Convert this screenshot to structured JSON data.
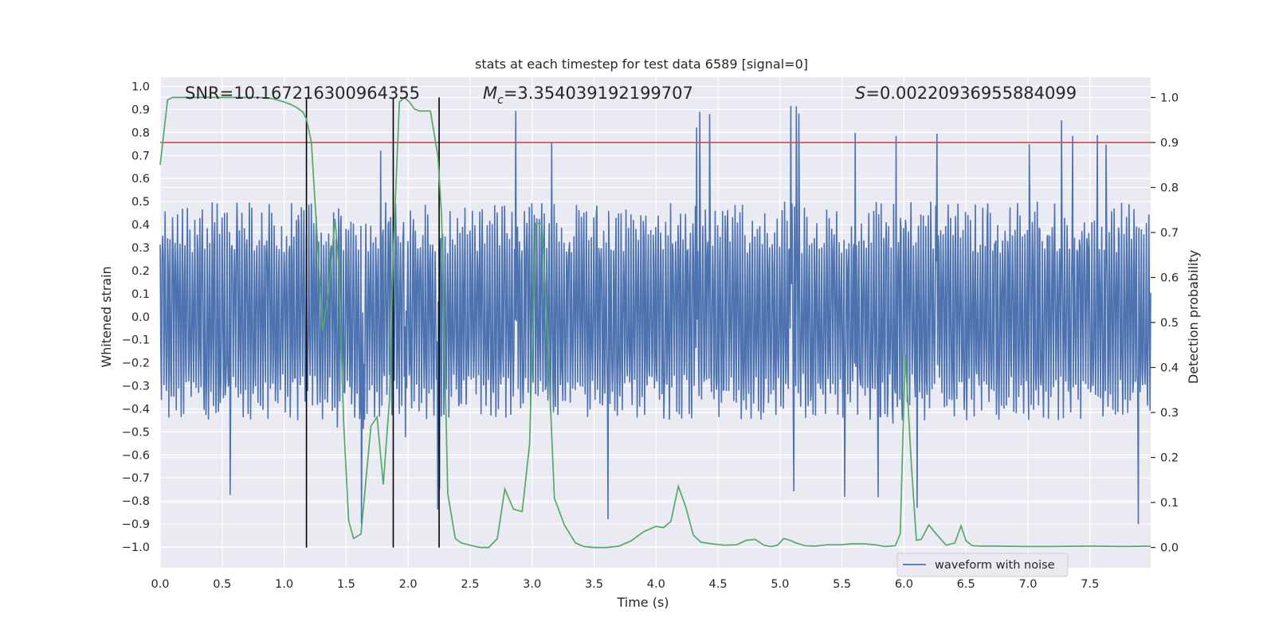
{
  "chart_data": {
    "type": "line",
    "title": "stats at each timestep for test data 6589 [signal=0]",
    "xlabel": "Time (s)",
    "ylabel_left": "Whitened strain",
    "ylabel_right": "Detection probability",
    "xlim": [
      0,
      7.99
    ],
    "ylim_left": [
      -1.09,
      1.04
    ],
    "ylim_right": [
      -0.045,
      1.045
    ],
    "x_ticks": [
      "0.0",
      "0.5",
      "1.0",
      "1.5",
      "2.0",
      "2.5",
      "3.0",
      "3.5",
      "4.0",
      "4.5",
      "5.0",
      "5.5",
      "6.0",
      "6.5",
      "7.0",
      "7.5"
    ],
    "y_left_ticks": [
      "1.0",
      "0.9",
      "0.8",
      "0.7",
      "0.6",
      "0.5",
      "0.4",
      "0.3",
      "0.2",
      "0.1",
      "0.0",
      "−0.1",
      "−0.2",
      "−0.3",
      "−0.4",
      "−0.5",
      "−0.6",
      "−0.7",
      "−0.8",
      "−0.9",
      "−1.0"
    ],
    "y_right_ticks": [
      "1.0",
      "0.9",
      "0.8",
      "0.7",
      "0.6",
      "0.5",
      "0.4",
      "0.3",
      "0.2",
      "0.1",
      "0.0"
    ],
    "grid": true,
    "legend": {
      "position": "lower-right",
      "entries": [
        "waveform with noise"
      ]
    },
    "annotations": {
      "snr": "SNR=10.167216300964355",
      "mc_symbol": "M",
      "mc_sub": "c",
      "mc_value": "=3.354039192199707",
      "s_symbol": "S",
      "s_value": "=0.00220936955884099"
    },
    "threshold_right": 0.9,
    "vertical_lines_x": [
      1.18,
      1.88,
      2.25
    ],
    "waveform": {
      "name": "waveform with noise",
      "samples": 1600,
      "typical_envelope": [
        -0.45,
        0.5
      ],
      "seed": 6589
    },
    "series": [
      {
        "name": "detection probability",
        "axis": "right",
        "x": [
          0.0,
          0.06,
          0.1,
          0.2,
          0.3,
          0.4,
          0.5,
          0.6,
          0.7,
          0.8,
          0.9,
          1.0,
          1.05,
          1.1,
          1.15,
          1.18,
          1.22,
          1.26,
          1.31,
          1.36,
          1.41,
          1.44,
          1.48,
          1.52,
          1.56,
          1.62,
          1.7,
          1.75,
          1.8,
          1.85,
          1.88,
          1.93,
          1.97,
          2.01,
          2.05,
          2.09,
          2.14,
          2.18,
          2.24,
          2.27,
          2.32,
          2.38,
          2.43,
          2.5,
          2.58,
          2.65,
          2.72,
          2.78,
          2.85,
          2.92,
          2.98,
          3.03,
          3.08,
          3.12,
          3.18,
          3.26,
          3.35,
          3.42,
          3.5,
          3.6,
          3.7,
          3.8,
          3.9,
          4.0,
          4.06,
          4.12,
          4.18,
          4.24,
          4.3,
          4.36,
          4.45,
          4.55,
          4.65,
          4.73,
          4.8,
          4.87,
          4.93,
          4.98,
          5.03,
          5.08,
          5.13,
          5.2,
          5.28,
          5.38,
          5.48,
          5.58,
          5.68,
          5.77,
          5.85,
          5.93,
          5.97,
          6.01,
          6.06,
          6.1,
          6.14,
          6.2,
          6.26,
          6.34,
          6.41,
          6.46,
          6.5,
          6.55,
          6.62,
          6.75,
          6.95,
          7.2,
          7.5,
          7.8,
          7.99
        ],
        "y": [
          0.85,
          0.995,
          1.0,
          1.0,
          1.0,
          1.0,
          1.0,
          1.0,
          1.0,
          1.0,
          0.998,
          0.99,
          0.985,
          0.978,
          0.968,
          0.952,
          0.9,
          0.72,
          0.48,
          0.57,
          0.73,
          0.63,
          0.28,
          0.06,
          0.02,
          0.03,
          0.27,
          0.29,
          0.14,
          0.33,
          0.66,
          0.99,
          1.0,
          0.99,
          0.975,
          0.97,
          0.97,
          0.97,
          0.87,
          0.74,
          0.12,
          0.02,
          0.01,
          0.005,
          0.0,
          0.0,
          0.02,
          0.13,
          0.085,
          0.08,
          0.23,
          0.72,
          0.72,
          0.5,
          0.11,
          0.05,
          0.01,
          0.002,
          0.0,
          0.0,
          0.003,
          0.015,
          0.035,
          0.047,
          0.044,
          0.058,
          0.136,
          0.09,
          0.028,
          0.012,
          0.008,
          0.005,
          0.006,
          0.016,
          0.018,
          0.005,
          0.002,
          0.005,
          0.02,
          0.016,
          0.01,
          0.004,
          0.003,
          0.006,
          0.006,
          0.008,
          0.008,
          0.006,
          0.002,
          0.004,
          0.03,
          0.43,
          0.18,
          0.016,
          0.018,
          0.05,
          0.03,
          0.005,
          0.01,
          0.048,
          0.015,
          0.004,
          0.003,
          0.003,
          0.002,
          0.002,
          0.003,
          0.002,
          0.003
        ]
      }
    ]
  }
}
